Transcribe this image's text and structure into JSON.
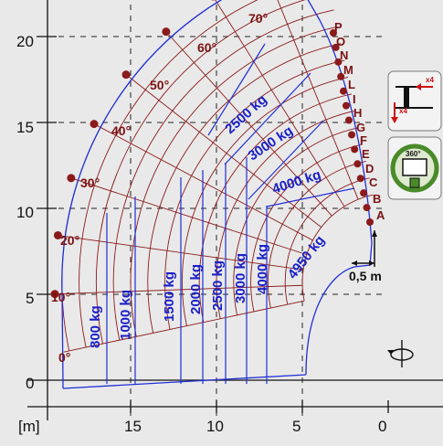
{
  "diagram": {
    "unit_label": "[m]",
    "y_ticks": [
      "0",
      "5",
      "10",
      "15",
      "20"
    ],
    "x_ticks": [
      "15",
      "10",
      "5",
      "0"
    ],
    "angles": [
      "0°",
      "10°",
      "20°",
      "30°",
      "40°",
      "50°",
      "60°",
      "70°"
    ],
    "extensions": [
      "A",
      "B",
      "C",
      "D",
      "E",
      "F",
      "G",
      "H",
      "I",
      "L",
      "M",
      "N",
      "O",
      "P"
    ],
    "loads": [
      {
        "label": "800 kg"
      },
      {
        "label": "1000 kg"
      },
      {
        "label": "1500 kg"
      },
      {
        "label": "2000 kg"
      },
      {
        "label": "2500 kg"
      },
      {
        "label": "3000 kg"
      },
      {
        "label": "4000 kg"
      },
      {
        "label": "4950 kg"
      },
      {
        "label": "2500 kg"
      },
      {
        "label": "3000 kg"
      },
      {
        "label": "4000 kg"
      }
    ],
    "scale_bar_label": "0,5 m",
    "badge_outrigger_top": "x4",
    "badge_outrigger_side": "x4",
    "badge_rotation": "360°",
    "colors": {
      "grid_red": "#8b1a1a",
      "envelope_blue": "#1f2fd6",
      "background": "#e9e9e9",
      "badge_green": "#4a8a2a"
    }
  }
}
